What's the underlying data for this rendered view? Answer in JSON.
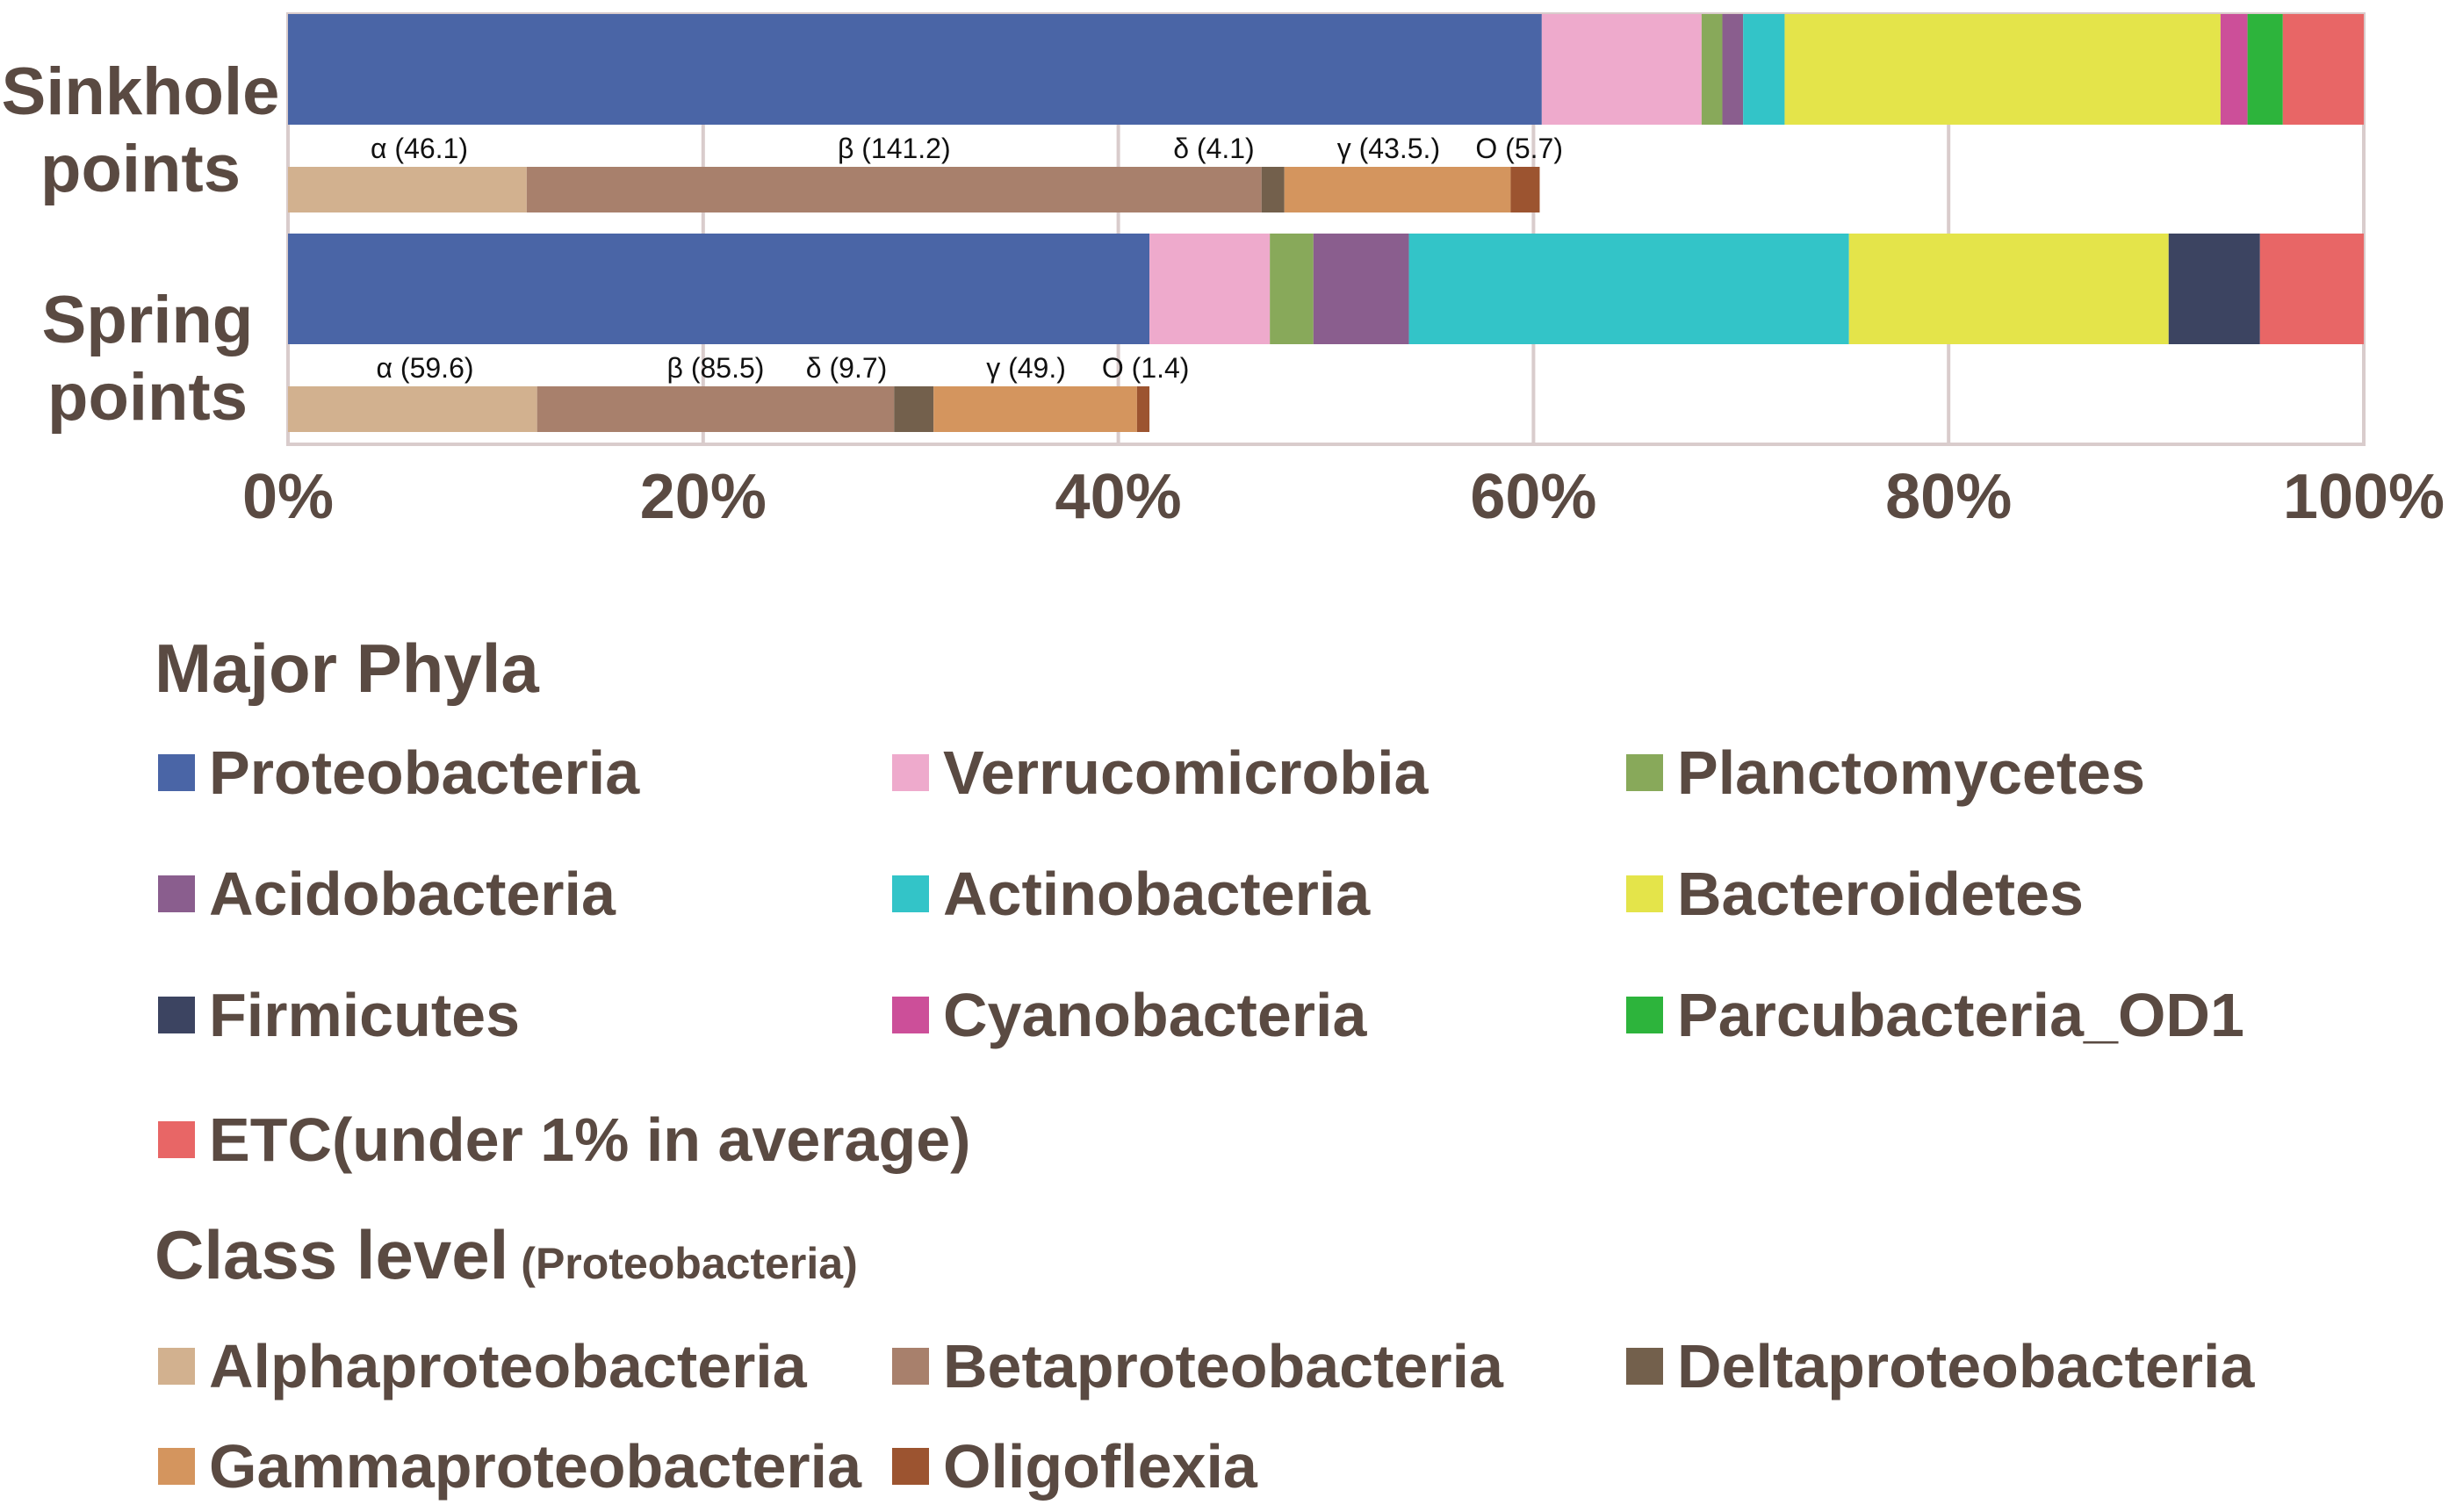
{
  "chart_data": {
    "type": "bar",
    "orientation": "horizontal-stacked-100",
    "xlim": [
      0,
      100
    ],
    "xticks": [
      "0%",
      "20%",
      "40%",
      "60%",
      "80%",
      "100%"
    ],
    "grid": true,
    "rows": [
      {
        "label": [
          "Sinkhole",
          "points"
        ],
        "phyla": [
          60.4,
          7.7,
          1.0,
          1.0,
          2.0,
          21.0,
          0,
          1.3,
          1.7,
          3.9
        ],
        "classes": [
          11.5,
          35.4,
          1.1,
          10.9,
          1.4
        ],
        "class_labels": [
          "α (46.1)",
          "β (141.2)",
          "δ (4.1)",
          "γ (43.5.)",
          "O (5.7)"
        ]
      },
      {
        "label": [
          "Spring",
          "points"
        ],
        "phyla": [
          41.5,
          5.8,
          2.1,
          4.6,
          21.2,
          15.4,
          4.4,
          0,
          0,
          5.0
        ],
        "classes": [
          12.0,
          17.2,
          1.9,
          9.8,
          0.6
        ],
        "class_labels": [
          "α (59.6)",
          "β (85.5)",
          "δ (9.7)",
          "γ (49.)",
          "O (1.4)"
        ]
      }
    ]
  },
  "legend": {
    "phyla_title": "Major Phyla",
    "phyla": [
      {
        "name": "Proteobacteria",
        "color": "#4a65a6"
      },
      {
        "name": "Verrucomicrobia",
        "color": "#eeaacc"
      },
      {
        "name": "Planctomycetes",
        "color": "#88a95a"
      },
      {
        "name": "Acidobacteria",
        "color": "#8a5e8e"
      },
      {
        "name": "Actinobacteria",
        "color": "#33c4c8"
      },
      {
        "name": "Bacteroidetes",
        "color": "#e4e44a"
      },
      {
        "name": "Firmicutes",
        "color": "#3c4461"
      },
      {
        "name": "Cyanobacteria",
        "color": "#cc4f99"
      },
      {
        "name": "Parcubacteria_OD1",
        "color": "#2db43c"
      },
      {
        "name": "ETC(under 1% in average)",
        "color": "#e86666"
      }
    ],
    "class_title": "Class level",
    "class_subtitle": "(Proteobacteria)",
    "classes": [
      {
        "name": "Alphaproteobacteria",
        "color": "#d2b18f"
      },
      {
        "name": "Betaproteobacteria",
        "color": "#a8806c"
      },
      {
        "name": "Deltaproteobacteria",
        "color": "#73604c"
      },
      {
        "name": "Gammaproteobacteria",
        "color": "#d4955e"
      },
      {
        "name": "Oligoflexia",
        "color": "#9c5430"
      }
    ]
  }
}
